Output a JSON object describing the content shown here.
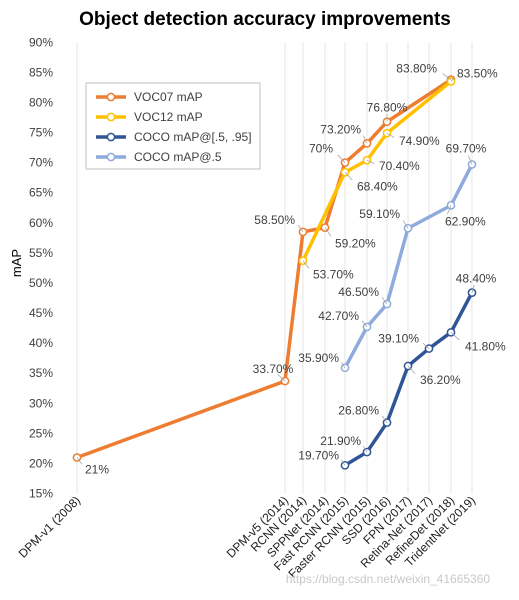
{
  "chart_data": {
    "type": "line",
    "title": "Object detection accuracy improvements",
    "ylabel": "mAP",
    "xlabel": "",
    "ylim": [
      15,
      90
    ],
    "yticks": [
      15,
      20,
      25,
      30,
      35,
      40,
      45,
      50,
      55,
      60,
      65,
      70,
      75,
      80,
      85,
      90
    ],
    "ytick_suffix": "%",
    "grid": "vertical",
    "legend_position": "top-left",
    "categories": [
      "DPM-v1 (2008)",
      "DPM-v5 (2014)",
      "RCNN (2014)",
      "SPPNet (2014)",
      "Fast RCNN (2015)",
      "Faster RCNN (2015)",
      "SSD (2016)",
      "FPN (2017)",
      "Retina-Net (2017)",
      "RefineDet (2018)",
      "TridentNet (2019)"
    ],
    "series": [
      {
        "name": "VOC07 mAP",
        "color": "#ED7D31",
        "values": [
          21,
          33.7,
          58.5,
          59.2,
          70,
          73.2,
          76.8,
          null,
          null,
          83.8,
          null
        ],
        "labels": [
          "21%",
          "33.70%",
          "58.50%",
          "59.20%",
          "70%",
          "73.20%",
          "76.80%",
          null,
          null,
          "83.80%",
          null
        ]
      },
      {
        "name": "VOC12 mAP",
        "color": "#FFC000",
        "values": [
          null,
          null,
          53.7,
          null,
          68.4,
          70.4,
          74.9,
          null,
          null,
          83.5,
          null
        ],
        "labels": [
          null,
          null,
          "53.70%",
          null,
          "68.40%",
          "70.40%",
          "74.90%",
          null,
          null,
          "83.50%",
          null
        ]
      },
      {
        "name": "COCO mAP@[.5, .95]",
        "color": "#2F5597",
        "values": [
          null,
          null,
          null,
          null,
          19.7,
          21.9,
          26.8,
          36.2,
          39.1,
          41.8,
          48.4
        ],
        "labels": [
          null,
          null,
          null,
          null,
          "19.70%",
          "21.90%",
          "26.80%",
          "36.20%",
          "39.10%",
          "41.80%",
          "48.40%"
        ]
      },
      {
        "name": "COCO mAP@.5",
        "color": "#8FAADC",
        "values": [
          null,
          null,
          null,
          null,
          35.9,
          42.7,
          46.5,
          59.1,
          null,
          62.9,
          69.7
        ],
        "labels": [
          null,
          null,
          null,
          null,
          "35.90%",
          "42.70%",
          "46.50%",
          "59.10%",
          null,
          "62.90%",
          "69.70%"
        ]
      }
    ]
  },
  "watermark": "https://blog.csdn.net/weixin_41665360"
}
